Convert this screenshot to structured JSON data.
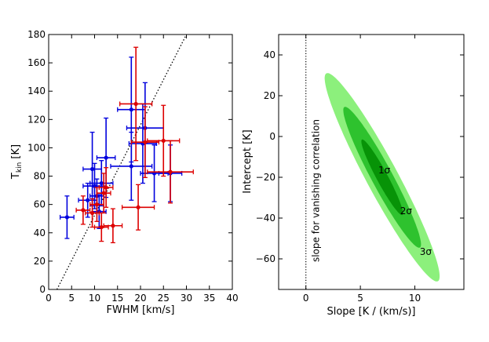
{
  "chart_data": [
    {
      "type": "scatter",
      "xlabel": "FWHM  [km/s]",
      "ylabel": "T",
      "ylabel_sub": "kin",
      "ylabel_unit": "  [K]",
      "xlim": [
        0,
        40
      ],
      "ylim": [
        0,
        180
      ],
      "xticks": [
        0,
        5,
        10,
        15,
        20,
        25,
        30,
        35,
        40
      ],
      "yticks": [
        0,
        20,
        40,
        60,
        80,
        100,
        120,
        140,
        160,
        180
      ],
      "trend_line": {
        "style": "dotted",
        "points": [
          [
            1.8,
            0
          ],
          [
            30,
            180
          ]
        ]
      },
      "series": [
        {
          "name": "blue",
          "color": "#0000dd",
          "points": [
            {
              "x": 4.0,
              "y": 51,
              "xerr": 1.5,
              "yerr": 15
            },
            {
              "x": 8.5,
              "y": 63,
              "xerr": 2.0,
              "yerr": 12
            },
            {
              "x": 9.5,
              "y": 85,
              "xerr": 2.0,
              "yerr": 26
            },
            {
              "x": 10.0,
              "y": 73,
              "xerr": 2.5,
              "yerr": 16
            },
            {
              "x": 10.5,
              "y": 66,
              "xerr": 1.5,
              "yerr": 12
            },
            {
              "x": 11.0,
              "y": 55,
              "xerr": 1.5,
              "yerr": 12
            },
            {
              "x": 11.5,
              "y": 75,
              "xerr": 2.5,
              "yerr": 16
            },
            {
              "x": 12.5,
              "y": 93,
              "xerr": 2.0,
              "yerr": 28
            },
            {
              "x": 18.0,
              "y": 127,
              "xerr": 3.0,
              "yerr": 37
            },
            {
              "x": 18.0,
              "y": 87,
              "xerr": 4.5,
              "yerr": 24
            },
            {
              "x": 20.5,
              "y": 103,
              "xerr": 3.0,
              "yerr": 28
            },
            {
              "x": 21.0,
              "y": 114,
              "xerr": 4.0,
              "yerr": 32
            },
            {
              "x": 23.0,
              "y": 82,
              "xerr": 3.0,
              "yerr": 20
            },
            {
              "x": 26.5,
              "y": 82,
              "xerr": 2.5,
              "yerr": 20
            }
          ]
        },
        {
          "name": "red",
          "color": "#dd0000",
          "points": [
            {
              "x": 7.5,
              "y": 56,
              "xerr": 1.5,
              "yerr": 10
            },
            {
              "x": 9.5,
              "y": 54,
              "xerr": 1.5,
              "yerr": 10
            },
            {
              "x": 10.5,
              "y": 60,
              "xerr": 1.5,
              "yerr": 12
            },
            {
              "x": 11.5,
              "y": 44,
              "xerr": 1.5,
              "yerr": 10
            },
            {
              "x": 12.0,
              "y": 68,
              "xerr": 1.5,
              "yerr": 14
            },
            {
              "x": 12.5,
              "y": 72,
              "xerr": 1.5,
              "yerr": 14
            },
            {
              "x": 14.0,
              "y": 45,
              "xerr": 2.0,
              "yerr": 12
            },
            {
              "x": 19.0,
              "y": 131,
              "xerr": 3.5,
              "yerr": 40
            },
            {
              "x": 19.5,
              "y": 58,
              "xerr": 3.5,
              "yerr": 16
            },
            {
              "x": 21.0,
              "y": 104,
              "xerr": 3.0,
              "yerr": 25
            },
            {
              "x": 25.0,
              "y": 105,
              "xerr": 3.5,
              "yerr": 25
            },
            {
              "x": 26.5,
              "y": 83,
              "xerr": 5.0,
              "yerr": 22
            }
          ]
        }
      ]
    },
    {
      "type": "contour",
      "xlabel": "Slope  [K / (km/s)]",
      "ylabel": "Intercept  [K]",
      "xlim": [
        -2.5,
        14.5
      ],
      "ylim": [
        -75,
        50
      ],
      "xticks": [
        0,
        5,
        10
      ],
      "yticks": [
        40,
        20,
        0,
        -20,
        -40,
        -60
      ],
      "vertical_line": {
        "x": 0,
        "label": "slope for vanishing correlation"
      },
      "center": {
        "x": 7,
        "y": -20
      },
      "orientation": {
        "dx": 1,
        "dy": -10
      },
      "levels": [
        {
          "label": "3σ",
          "semi_major_slope": 5.1,
          "semi_minor": 1.35,
          "color": "#8cf07c",
          "label_at": [
            11.0,
            -58
          ]
        },
        {
          "label": "2σ",
          "semi_major_slope": 3.45,
          "semi_minor": 0.9,
          "color": "#2ec22e",
          "label_at": [
            9.2,
            -38
          ]
        },
        {
          "label": "1σ",
          "semi_major_slope": 1.85,
          "semi_minor": 0.48,
          "color": "#079307",
          "label_at": [
            7.2,
            -18
          ]
        }
      ]
    }
  ]
}
